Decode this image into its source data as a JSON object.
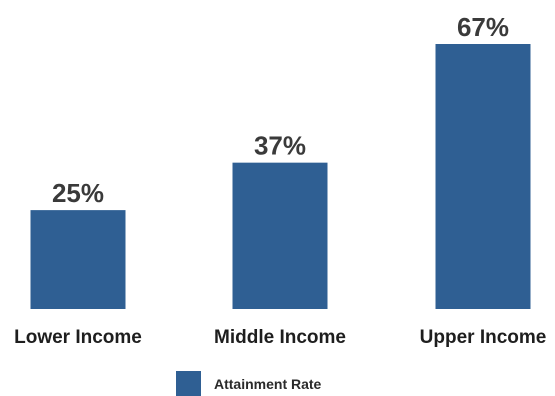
{
  "chart_data": {
    "type": "bar",
    "categories": [
      "Lower Income",
      "Middle Income",
      "Upper Income"
    ],
    "series": [
      {
        "name": "Attainment Rate",
        "values": [
          25,
          37,
          67
        ],
        "labels": [
          "25%",
          "37%",
          "67%"
        ],
        "color": "#2f5f93"
      }
    ],
    "title": "",
    "xlabel": "",
    "ylabel": "",
    "ylim": [
      0,
      70
    ],
    "grid": false,
    "legend": "bottom"
  }
}
